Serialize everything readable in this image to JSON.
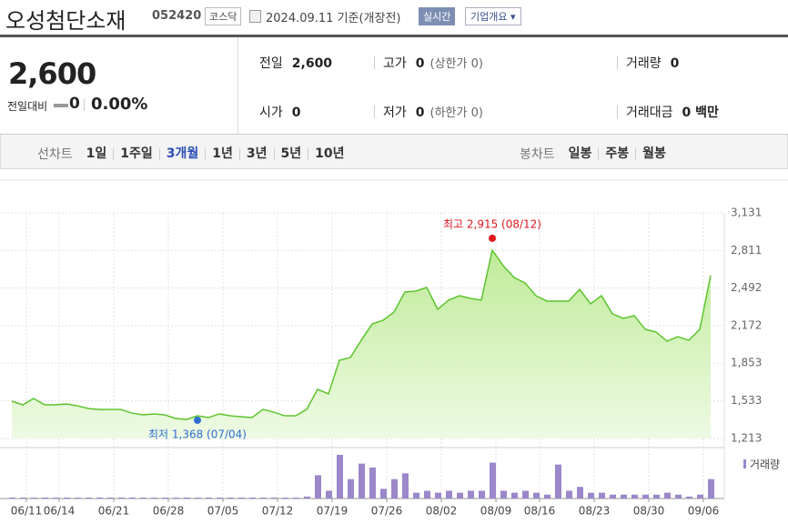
{
  "header": {
    "title": "오성첨단소재",
    "code": "052420",
    "market": "코스닥",
    "date": "2024.09.11 기준(개장전)",
    "realtime": "실시간",
    "overview": "기업개요"
  },
  "quote": {
    "price": "2,600",
    "change_label": "전일대비",
    "change": "0",
    "change_rate": "0.00%",
    "items": [
      {
        "label": "전일",
        "value": "2,600"
      },
      {
        "label": "고가",
        "value": "0",
        "note": "(상한가 0)"
      },
      {
        "label": "거래량",
        "value": "0"
      },
      {
        "label": "시가",
        "value": "0"
      },
      {
        "label": "저가",
        "value": "0",
        "note": "(하한가 0)"
      },
      {
        "label": "거래대금",
        "value": "0 백만"
      }
    ]
  },
  "tabs": {
    "line_label": "선차트",
    "line": [
      "1일",
      "1주일",
      "3개월",
      "1년",
      "3년",
      "5년",
      "10년"
    ],
    "selected": 2,
    "candle_label": "봉차트",
    "candle": [
      "일봉",
      "주봉",
      "월봉"
    ]
  },
  "chart_data": {
    "type": "area",
    "color": "#5cc42e",
    "categories": [
      "06/11",
      null,
      null,
      "06/14",
      null,
      null,
      null,
      null,
      "06/21",
      null,
      null,
      null,
      null,
      "06/28",
      null,
      null,
      null,
      null,
      "07/05",
      null,
      null,
      null,
      null,
      "07/12",
      null,
      null,
      null,
      null,
      "07/19",
      null,
      null,
      null,
      null,
      "07/26",
      null,
      null,
      null,
      null,
      "08/02",
      null,
      null,
      null,
      null,
      "08/09",
      null,
      null,
      null,
      "08/16",
      null,
      null,
      null,
      null,
      "08/23",
      null,
      null,
      null,
      null,
      "08/30",
      null,
      null,
      null,
      null,
      "09/06",
      null,
      null
    ],
    "values": [
      1530,
      1499,
      1553,
      1499,
      1499,
      1507,
      1491,
      1468,
      1460,
      1460,
      1460,
      1429,
      1414,
      1422,
      1414,
      1383,
      1375,
      1406,
      1391,
      1422,
      1406,
      1398,
      1391,
      1460,
      1437,
      1406,
      1406,
      1460,
      1631,
      1592,
      1878,
      1901,
      2048,
      2187,
      2218,
      2288,
      2458,
      2466,
      2497,
      2311,
      2389,
      2427,
      2404,
      2389,
      2814,
      2682,
      2582,
      2535,
      2427,
      2381,
      2381,
      2381,
      2481,
      2358,
      2427,
      2273,
      2234,
      2257,
      2141,
      2118,
      2040,
      2079,
      2048,
      2141,
      2600
    ],
    "volume": {
      "name": "거래량",
      "color": "#9b87c9",
      "values": [
        1,
        1,
        1,
        1,
        1,
        1,
        1,
        1,
        1,
        1,
        1,
        1,
        1,
        1,
        1,
        1,
        1,
        1,
        1,
        1,
        1,
        1,
        1,
        1,
        1,
        1,
        1,
        2,
        24,
        8,
        45,
        20,
        36,
        32,
        10,
        20,
        26,
        6,
        8,
        6,
        8,
        6,
        8,
        8,
        37,
        8,
        6,
        8,
        6,
        4,
        35,
        8,
        12,
        6,
        6,
        4,
        4,
        4,
        4,
        4,
        6,
        4,
        2,
        4,
        20
      ]
    },
    "ylim": [
      1213,
      3131
    ],
    "yticks": [
      {
        "value": 1213,
        "label": "1,213"
      },
      {
        "value": 1533,
        "label": "1,533"
      },
      {
        "value": 1853,
        "label": "1,853"
      },
      {
        "value": 2172,
        "label": "2,172"
      },
      {
        "value": 2492,
        "label": "2,492"
      },
      {
        "value": 2811,
        "label": "2,811"
      },
      {
        "value": 3131,
        "label": "3,131"
      }
    ],
    "grid": true,
    "annotations": [
      {
        "label": "최고 2,915 (08/12)",
        "value": 2915,
        "index": 44,
        "color": "#e0161d",
        "position": "above"
      },
      {
        "label": "최저 1,368 (07/04)",
        "value": 1368,
        "index": 17,
        "color": "#2f6fd0",
        "position": "below"
      }
    ]
  }
}
